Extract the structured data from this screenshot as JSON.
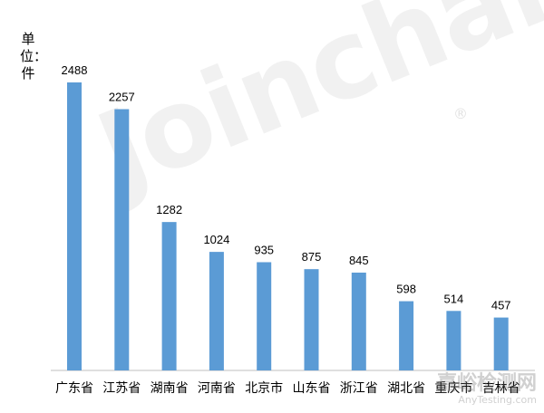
{
  "chart_data": {
    "type": "bar",
    "unit_label": "单位：件",
    "categories": [
      "广东省",
      "江苏省",
      "湖南省",
      "河南省",
      "北京市",
      "山东省",
      "浙江省",
      "湖北省",
      "重庆市",
      "吉林省"
    ],
    "values": [
      2488,
      2257,
      1282,
      1024,
      935,
      875,
      845,
      598,
      514,
      457
    ],
    "ylim": [
      0,
      2488
    ],
    "bar_color": "#5b9bd5",
    "grid": false
  },
  "watermark": {
    "text": "Joinchain",
    "reg_mark": "®"
  },
  "brand": {
    "cn": "嘉峪检测网",
    "en": "AnyTesting.com"
  }
}
